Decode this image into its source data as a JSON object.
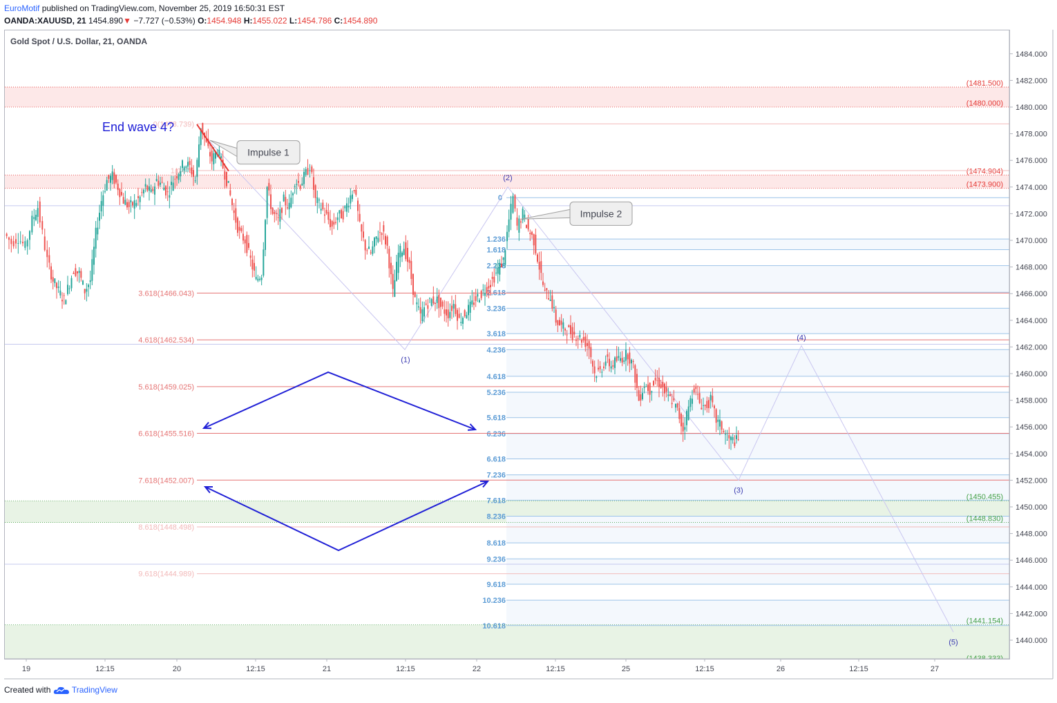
{
  "header": {
    "publisher": "EuroMotif",
    "published_text": " published on TradingView.com, November 25, 2019 16:50:31 EST",
    "symbol": "OANDA:XAUUSD, 21",
    "last": "1454.890",
    "change_arrow": "▼",
    "change": "−7.727 (−0.53%)",
    "o_label": "O:",
    "o_value": "1454.948",
    "h_label": "H:",
    "h_value": "1455.022",
    "l_label": "L:",
    "l_value": "1454.786",
    "c_label": "C:",
    "c_value": "1454.890"
  },
  "chart_title": "Gold Spot / U.S. Dollar, 21, OANDA",
  "footer": {
    "created_with": "Created with",
    "brand": "TradingView",
    "logo_icon": "tradingview-cloud-icon"
  },
  "colors": {
    "up": "#26a69a",
    "down": "#ef5350",
    "accent": "#2962ff",
    "wave": "#c9c6f0",
    "fib_red": "#e57373",
    "fib_blue": "#5b9bd5",
    "zone_red": "#fde8e8",
    "zone_green": "#e8f3e5",
    "zone_blue": "#f4f8fd",
    "text_blue": "#1a1ad6"
  },
  "chart_data": {
    "type": "candlestick",
    "title": "Gold Spot / U.S. Dollar, 21, OANDA",
    "xlabel": "",
    "ylabel": "",
    "ylim": [
      1437,
      1486
    ],
    "y_ticks": [
      "1440.000",
      "1442.000",
      "1444.000",
      "1446.000",
      "1448.000",
      "1450.000",
      "1452.000",
      "1454.000",
      "1456.000",
      "1458.000",
      "1460.000",
      "1462.000",
      "1464.000",
      "1466.000",
      "1468.000",
      "1470.000",
      "1472.000",
      "1474.000",
      "1476.000",
      "1478.000",
      "1480.000",
      "1482.000",
      "1484.000"
    ],
    "x_ticks": [
      "19",
      "12:15",
      "20",
      "12:15",
      "21",
      "12:15",
      "22",
      "12:15",
      "25",
      "12:15",
      "26",
      "12:15",
      "27"
    ],
    "grid": false,
    "price_path": [
      [
        0,
        1470.5
      ],
      [
        10,
        1469.8
      ],
      [
        20,
        1470.2
      ],
      [
        30,
        1469.5
      ],
      [
        40,
        1471.5
      ],
      [
        48,
        1472.5
      ],
      [
        55,
        1470.5
      ],
      [
        62,
        1468.5
      ],
      [
        70,
        1467
      ],
      [
        78,
        1466.2
      ],
      [
        86,
        1465.5
      ],
      [
        94,
        1466.8
      ],
      [
        100,
        1467.8
      ],
      [
        108,
        1467.5
      ],
      [
        116,
        1466.2
      ],
      [
        124,
        1467
      ],
      [
        132,
        1470.5
      ],
      [
        140,
        1473
      ],
      [
        148,
        1474.5
      ],
      [
        156,
        1474.8
      ],
      [
        164,
        1474
      ],
      [
        172,
        1473
      ],
      [
        180,
        1472.5
      ],
      [
        188,
        1472.8
      ],
      [
        196,
        1473.2
      ],
      [
        204,
        1474
      ],
      [
        212,
        1473.5
      ],
      [
        220,
        1474.5
      ],
      [
        228,
        1474.2
      ],
      [
        236,
        1473.5
      ],
      [
        244,
        1474.5
      ],
      [
        252,
        1475.2
      ],
      [
        260,
        1475.8
      ],
      [
        268,
        1475.5
      ],
      [
        276,
        1474.5
      ],
      [
        284,
        1478.6
      ],
      [
        292,
        1477.2
      ],
      [
        300,
        1476
      ],
      [
        308,
        1476.8
      ],
      [
        316,
        1475.5
      ],
      [
        324,
        1474
      ],
      [
        332,
        1472
      ],
      [
        340,
        1470.5
      ],
      [
        348,
        1470
      ],
      [
        356,
        1468.5
      ],
      [
        364,
        1467
      ],
      [
        372,
        1467.5
      ],
      [
        380,
        1474
      ],
      [
        388,
        1472
      ],
      [
        396,
        1471.5
      ],
      [
        404,
        1473
      ],
      [
        412,
        1472.5
      ],
      [
        420,
        1474.5
      ],
      [
        428,
        1474.2
      ],
      [
        436,
        1475
      ],
      [
        442,
        1475.6
      ],
      [
        450,
        1473
      ],
      [
        458,
        1472.5
      ],
      [
        466,
        1471.8
      ],
      [
        474,
        1471
      ],
      [
        482,
        1471.8
      ],
      [
        490,
        1472
      ],
      [
        498,
        1473
      ],
      [
        506,
        1474
      ],
      [
        514,
        1471
      ],
      [
        522,
        1469.5
      ],
      [
        530,
        1469
      ],
      [
        538,
        1470.2
      ],
      [
        546,
        1470.8
      ],
      [
        554,
        1469.5
      ],
      [
        562,
        1466
      ],
      [
        570,
        1469
      ],
      [
        578,
        1469.5
      ],
      [
        586,
        1468
      ],
      [
        594,
        1465.5
      ],
      [
        602,
        1464.3
      ],
      [
        610,
        1465.2
      ],
      [
        618,
        1465.5
      ],
      [
        626,
        1465.5
      ],
      [
        634,
        1464.8
      ],
      [
        642,
        1464.5
      ],
      [
        650,
        1465.2
      ],
      [
        658,
        1464
      ],
      [
        666,
        1464.5
      ],
      [
        674,
        1465
      ],
      [
        682,
        1465.6
      ],
      [
        690,
        1466
      ],
      [
        698,
        1466.5
      ],
      [
        706,
        1467
      ],
      [
        714,
        1467.8
      ],
      [
        722,
        1468.5
      ],
      [
        730,
        1471.5
      ],
      [
        736,
        1473.2
      ],
      [
        742,
        1471
      ],
      [
        750,
        1472
      ],
      [
        758,
        1470.8
      ],
      [
        766,
        1470
      ],
      [
        774,
        1468
      ],
      [
        782,
        1466
      ],
      [
        790,
        1465.8
      ],
      [
        798,
        1464
      ],
      [
        806,
        1463.5
      ],
      [
        814,
        1463.3
      ],
      [
        822,
        1463
      ],
      [
        830,
        1462.8
      ],
      [
        838,
        1462.5
      ],
      [
        846,
        1462
      ],
      [
        854,
        1460
      ],
      [
        862,
        1460.2
      ],
      [
        870,
        1461
      ],
      [
        878,
        1460.6
      ],
      [
        886,
        1461
      ],
      [
        894,
        1461.2
      ],
      [
        902,
        1461.5
      ],
      [
        910,
        1460.5
      ],
      [
        918,
        1458
      ],
      [
        926,
        1459.2
      ],
      [
        934,
        1458.8
      ],
      [
        942,
        1459.5
      ],
      [
        950,
        1459.2
      ],
      [
        958,
        1458.3
      ],
      [
        966,
        1458
      ],
      [
        974,
        1457.2
      ],
      [
        982,
        1455.8
      ],
      [
        990,
        1457.5
      ],
      [
        998,
        1459
      ],
      [
        1006,
        1457.8
      ],
      [
        1014,
        1457.5
      ],
      [
        1022,
        1458
      ],
      [
        1030,
        1456.5
      ],
      [
        1038,
        1456
      ],
      [
        1046,
        1455
      ],
      [
        1054,
        1455
      ],
      [
        1062,
        1454.9
      ]
    ],
    "fib_left": [
      {
        "label": "0(1478.739)",
        "value": 1478.739,
        "color": "#f2b8b8"
      },
      {
        "label": "1(1475",
        "value": 1475.23,
        "color": "#f2b8b8"
      },
      {
        "label": "3.618(1466.043)",
        "value": 1466.043,
        "color": "#e57373"
      },
      {
        "label": "4.618(1462.534)",
        "value": 1462.534,
        "color": "#e57373"
      },
      {
        "label": "5.618(1459.025)",
        "value": 1459.025,
        "color": "#e57373"
      },
      {
        "label": "6.618(1455.516)",
        "value": 1455.516,
        "color": "#e57373"
      },
      {
        "label": "7.618(1452.007)",
        "value": 1452.007,
        "color": "#e57373"
      },
      {
        "label": "8.618(1448.498)",
        "value": 1448.498,
        "color": "#f2b8b8"
      },
      {
        "label": "9.618(1444.989)",
        "value": 1444.989,
        "color": "#f2b8b8"
      }
    ],
    "fib_right": [
      {
        "label": "0",
        "value": 1473.2
      },
      {
        "label": "1.236",
        "value": 1470.1
      },
      {
        "label": "1.618",
        "value": 1469.3
      },
      {
        "label": "2.236",
        "value": 1468.1
      },
      {
        "label": "2.618",
        "value": 1466.1
      },
      {
        "label": "3.236",
        "value": 1464.9
      },
      {
        "label": "3.618",
        "value": 1463.0
      },
      {
        "label": "4.236",
        "value": 1461.8
      },
      {
        "label": "4.618",
        "value": 1459.8
      },
      {
        "label": "5.236",
        "value": 1458.6
      },
      {
        "label": "5.618",
        "value": 1456.7
      },
      {
        "label": "6.236",
        "value": 1455.5
      },
      {
        "label": "6.618",
        "value": 1453.6
      },
      {
        "label": "7.236",
        "value": 1452.4
      },
      {
        "label": "7.618",
        "value": 1450.5
      },
      {
        "label": "8.236",
        "value": 1449.3
      },
      {
        "label": "8.618",
        "value": 1447.3
      },
      {
        "label": "9.236",
        "value": 1446.1
      },
      {
        "label": "9.618",
        "value": 1444.2
      },
      {
        "label": "10.236",
        "value": 1443.0
      },
      {
        "label": "10.618",
        "value": 1441.1
      }
    ],
    "levels_right": [
      {
        "label": "(1481.500)",
        "value": 1481.5,
        "color": "#e53935"
      },
      {
        "label": "(1480.000)",
        "value": 1480.0,
        "color": "#e53935"
      },
      {
        "label": "(1474.904)",
        "value": 1474.904,
        "color": "#e53935"
      },
      {
        "label": "(1473.900)",
        "value": 1473.9,
        "color": "#e53935"
      },
      {
        "label": "(1450.455)",
        "value": 1450.455,
        "color": "#43a047"
      },
      {
        "label": "(1448.830)",
        "value": 1448.83,
        "color": "#43a047"
      },
      {
        "label": "(1441.154)",
        "value": 1441.154,
        "color": "#43a047"
      },
      {
        "label": "(1438.333)",
        "value": 1438.333,
        "color": "#43a047"
      }
    ],
    "waves": [
      {
        "label": "(1)",
        "value": 1461.8
      },
      {
        "label": "(2)",
        "value": 1474.0
      },
      {
        "label": "(3)",
        "value": 1452.0
      },
      {
        "label": "(4)",
        "value": 1462.1
      },
      {
        "label": "(5)",
        "value": 1440.6
      }
    ],
    "annotations": [
      {
        "text": "End wave 4?"
      },
      {
        "text": "Impulse 1"
      },
      {
        "text": "Impulse 2"
      }
    ]
  }
}
